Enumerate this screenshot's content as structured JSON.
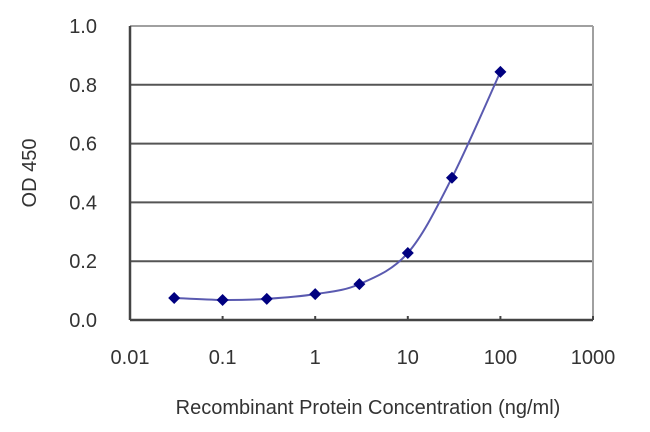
{
  "chart_data": {
    "type": "line",
    "title": "",
    "xlabel": "Recombinant Protein Concentration (ng/ml)",
    "ylabel": "OD 450",
    "xscale": "log",
    "xlim": [
      0.01,
      1000
    ],
    "ylim": [
      0.0,
      1.0
    ],
    "grid": "horizontal",
    "legend": "none",
    "x_ticks": [
      "0.01",
      "0.1",
      "1",
      "10",
      "100",
      "1000"
    ],
    "y_ticks": [
      "0.0",
      "0.2",
      "0.4",
      "0.6",
      "0.8",
      "1.0"
    ],
    "series": [
      {
        "name": "OD 450",
        "color": "#000080",
        "line_color": "#5a5ab0",
        "marker": "diamond",
        "x": [
          0.03,
          0.1,
          0.3,
          1,
          3,
          10,
          30,
          100
        ],
        "values": [
          0.075,
          0.068,
          0.072,
          0.088,
          0.122,
          0.228,
          0.484,
          0.844
        ]
      }
    ]
  },
  "axes": {
    "x_title": "Recombinant Protein Concentration (ng/ml)",
    "y_title": "OD 450",
    "x_tick_labels": [
      "0.01",
      "0.1",
      "1",
      "10",
      "100",
      "1000"
    ],
    "y_tick_labels": [
      "0.0",
      "0.2",
      "0.4",
      "0.6",
      "0.8",
      "1.0"
    ]
  }
}
